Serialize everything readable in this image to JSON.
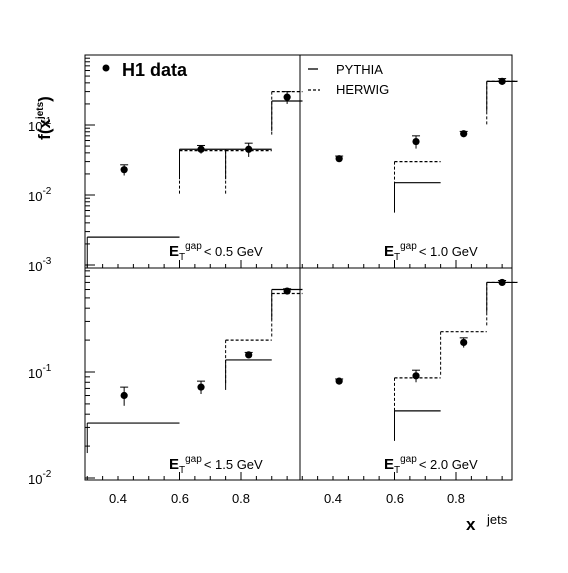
{
  "figure": {
    "ylabel": "f(x",
    "ylabel_sub": "jets",
    "ylabel_close": ")",
    "xlabel": "x",
    "xlabel_sup": "jets",
    "legend": {
      "data_label": "H1 data",
      "pythia_label": "PYTHIA",
      "herwig_label": "HERWIG"
    },
    "y_ticks_top": [
      {
        "base": "10",
        "exp": "-1"
      },
      {
        "base": "10",
        "exp": "-2"
      },
      {
        "base": "10",
        "exp": "-3"
      }
    ],
    "y_ticks_bottom": [
      {
        "base": "10",
        "exp": "-1"
      },
      {
        "base": "10",
        "exp": "-2"
      }
    ],
    "x_ticks_left": [
      "0.4",
      "0.6",
      "0.8"
    ],
    "x_ticks_right": [
      "0.4",
      "0.6",
      "0.8"
    ]
  },
  "chart_data": [
    {
      "type": "scatter",
      "panel": "top-left",
      "cut_E": "E",
      "cut_sub": "T",
      "cut_sup": "gap",
      "cut_text": "< 0.5 GeV",
      "x_range": [
        0.3,
        1.0
      ],
      "ylim": [
        0.001,
        1
      ],
      "yscale": "log",
      "data": [
        {
          "x": 0.42,
          "y": 0.023,
          "yerr": [
            0.004,
            0.004
          ]
        },
        {
          "x": 0.67,
          "y": 0.045,
          "yerr": [
            0.006,
            0.006
          ]
        },
        {
          "x": 0.825,
          "y": 0.045,
          "yerr": [
            0.01,
            0.01
          ]
        },
        {
          "x": 0.95,
          "y": 0.25,
          "yerr": [
            0.05,
            0.05
          ]
        }
      ],
      "pythia": [
        {
          "x0": 0.3,
          "x1": 0.6,
          "y": 0.0025
        },
        {
          "x0": 0.6,
          "x1": 0.75,
          "y": 0.045
        },
        {
          "x0": 0.75,
          "x1": 0.9,
          "y": 0.045
        },
        {
          "x0": 0.9,
          "x1": 1.0,
          "y": 0.22
        }
      ],
      "herwig": [
        {
          "x0": 0.6,
          "x1": 0.75,
          "y": 0.043
        },
        {
          "x0": 0.75,
          "x1": 0.9,
          "y": 0.043
        },
        {
          "x0": 0.9,
          "x1": 1.0,
          "y": 0.3
        }
      ]
    },
    {
      "type": "scatter",
      "panel": "top-right",
      "cut_E": "E",
      "cut_sub": "T",
      "cut_sup": "gap",
      "cut_text": "< 1.0 GeV",
      "x_range": [
        0.3,
        1.0
      ],
      "ylim": [
        0.001,
        1
      ],
      "yscale": "log",
      "data": [
        {
          "x": 0.42,
          "y": 0.033,
          "yerr": [
            0.003,
            0.003
          ]
        },
        {
          "x": 0.67,
          "y": 0.058,
          "yerr": [
            0.012,
            0.012
          ]
        },
        {
          "x": 0.825,
          "y": 0.075,
          "yerr": [
            0.006,
            0.006
          ]
        },
        {
          "x": 0.95,
          "y": 0.42,
          "yerr": [
            0.04,
            0.04
          ]
        }
      ],
      "pythia": [
        {
          "x0": 0.6,
          "x1": 0.75,
          "y": 0.015
        },
        {
          "x0": 0.9,
          "x1": 1.0,
          "y": 0.42
        }
      ],
      "herwig": [
        {
          "x0": 0.6,
          "x1": 0.75,
          "y": 0.03
        },
        {
          "x0": 0.9,
          "x1": 1.0,
          "y": 0.42
        }
      ]
    },
    {
      "type": "scatter",
      "panel": "bottom-left",
      "cut_E": "E",
      "cut_sub": "T",
      "cut_sup": "gap",
      "cut_text": "< 1.5 GeV",
      "x_range": [
        0.3,
        1.0
      ],
      "ylim": [
        0.01,
        1
      ],
      "yscale": "log",
      "data": [
        {
          "x": 0.42,
          "y": 0.06,
          "yerr": [
            0.012,
            0.012
          ]
        },
        {
          "x": 0.67,
          "y": 0.072,
          "yerr": [
            0.01,
            0.01
          ]
        },
        {
          "x": 0.825,
          "y": 0.145,
          "yerr": [
            0.008,
            0.008
          ]
        },
        {
          "x": 0.95,
          "y": 0.58,
          "yerr": [
            0.03,
            0.03
          ]
        }
      ],
      "pythia": [
        {
          "x0": 0.3,
          "x1": 0.6,
          "y": 0.033
        },
        {
          "x0": 0.75,
          "x1": 0.9,
          "y": 0.13
        },
        {
          "x0": 0.9,
          "x1": 1.0,
          "y": 0.6
        }
      ],
      "herwig": [
        {
          "x0": 0.75,
          "x1": 0.9,
          "y": 0.2
        },
        {
          "x0": 0.9,
          "x1": 1.0,
          "y": 0.55
        }
      ]
    },
    {
      "type": "scatter",
      "panel": "bottom-right",
      "cut_E": "E",
      "cut_sub": "T",
      "cut_sup": "gap",
      "cut_text": "< 2.0 GeV",
      "x_range": [
        0.3,
        1.0
      ],
      "ylim": [
        0.01,
        1
      ],
      "yscale": "log",
      "data": [
        {
          "x": 0.42,
          "y": 0.082,
          "yerr": [
            0.004,
            0.004
          ]
        },
        {
          "x": 0.67,
          "y": 0.092,
          "yerr": [
            0.012,
            0.012
          ]
        },
        {
          "x": 0.825,
          "y": 0.19,
          "yerr": [
            0.02,
            0.02
          ]
        },
        {
          "x": 0.95,
          "y": 0.7,
          "yerr": [
            0.03,
            0.03
          ]
        }
      ],
      "pythia": [
        {
          "x0": 0.6,
          "x1": 0.75,
          "y": 0.043
        },
        {
          "x0": 0.9,
          "x1": 1.0,
          "y": 0.7
        }
      ],
      "herwig": [
        {
          "x0": 0.6,
          "x1": 0.75,
          "y": 0.088
        },
        {
          "x0": 0.75,
          "x1": 0.9,
          "y": 0.24
        },
        {
          "x0": 0.9,
          "x1": 1.0,
          "y": 0.7
        }
      ]
    }
  ]
}
